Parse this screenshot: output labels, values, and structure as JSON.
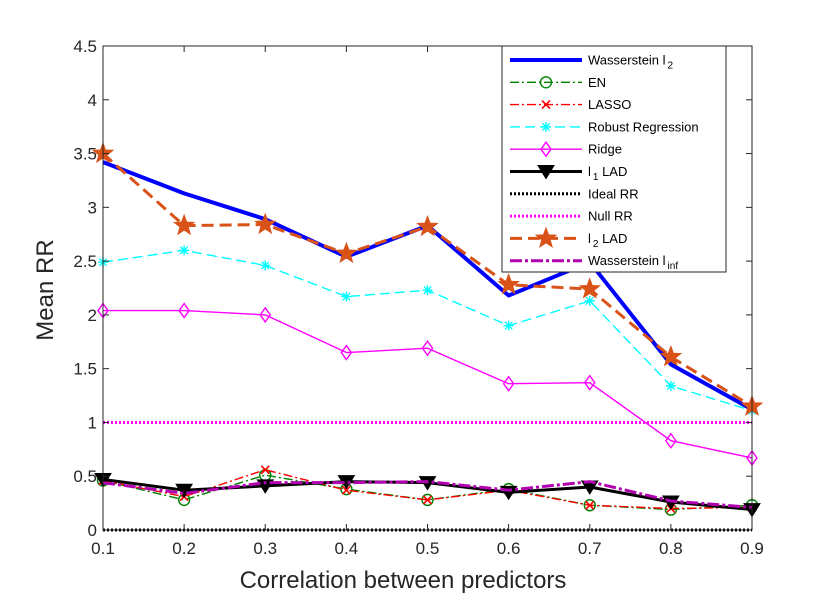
{
  "chart_data": {
    "type": "line",
    "title": "",
    "xlabel": "Correlation between predictors",
    "ylabel": "Mean RR",
    "x": [
      0.1,
      0.2,
      0.3,
      0.4,
      0.5,
      0.6,
      0.7,
      0.8,
      0.9
    ],
    "x_tick_labels": [
      "0.1",
      "0.2",
      "0.3",
      "0.4",
      "0.5",
      "0.6",
      "0.7",
      "0.8",
      "0.9"
    ],
    "xlim": [
      0.1,
      0.9
    ],
    "ylim": [
      0,
      4.5
    ],
    "y_ticks": [
      0,
      0.5,
      1,
      1.5,
      2,
      2.5,
      3,
      3.5,
      4,
      4.5
    ],
    "y_tick_labels": [
      "0",
      "0.5",
      "1",
      "1.5",
      "2",
      "2.5",
      "3",
      "3.5",
      "4",
      "4.5"
    ],
    "grid": false,
    "legend_position": "top-right",
    "series": [
      {
        "name": "Wasserstein l2",
        "legend_main": "Wasserstein l",
        "legend_sub": "2",
        "color": "#0000ff",
        "dash": "",
        "width": 4,
        "marker": "none",
        "values": [
          3.42,
          3.13,
          2.89,
          2.54,
          2.83,
          2.18,
          2.49,
          1.54,
          1.12
        ]
      },
      {
        "name": "EN",
        "legend_main": "EN",
        "legend_sub": "",
        "color": "#008000",
        "dash": "9 3 2 3",
        "width": 1.4,
        "marker": "circle",
        "values": [
          0.46,
          0.28,
          0.51,
          0.38,
          0.28,
          0.38,
          0.23,
          0.19,
          0.23
        ]
      },
      {
        "name": "LASSO",
        "legend_main": "LASSO",
        "legend_sub": "",
        "color": "#ff0000",
        "dash": "9 3 2 3",
        "width": 1.4,
        "marker": "x",
        "values": [
          0.46,
          0.31,
          0.56,
          0.37,
          0.28,
          0.37,
          0.23,
          0.2,
          0.21
        ]
      },
      {
        "name": "Robust Regression",
        "legend_main": "Robust Regression",
        "legend_sub": "",
        "color": "#00ffff",
        "dash": "10 5",
        "width": 1.4,
        "marker": "asterisk",
        "values": [
          2.49,
          2.6,
          2.46,
          2.17,
          2.23,
          1.9,
          2.13,
          1.34,
          1.11
        ]
      },
      {
        "name": "Ridge",
        "legend_main": "Ridge",
        "legend_sub": "",
        "color": "#ff00ff",
        "dash": "",
        "width": 1.4,
        "marker": "diamond",
        "values": [
          2.04,
          2.04,
          2.0,
          1.65,
          1.69,
          1.36,
          1.37,
          0.83,
          0.67
        ]
      },
      {
        "name": "l1 LAD",
        "legend_main": "l",
        "legend_sub": "1",
        "legend_after": " LAD",
        "color": "#000000",
        "dash": "",
        "width": 3,
        "marker": "triangle-down",
        "values": [
          0.47,
          0.37,
          0.41,
          0.45,
          0.44,
          0.35,
          0.4,
          0.26,
          0.19
        ]
      },
      {
        "name": "Ideal RR",
        "legend_main": "Ideal RR",
        "legend_sub": "",
        "color": "#000000",
        "dash": "2 2",
        "width": 3,
        "marker": "none",
        "values": [
          0,
          0,
          0,
          0,
          0,
          0,
          0,
          0,
          0
        ]
      },
      {
        "name": "Null RR",
        "legend_main": "Null RR",
        "legend_sub": "",
        "color": "#ff00ff",
        "dash": "2 2",
        "width": 3,
        "marker": "none",
        "values": [
          1,
          1,
          1,
          1,
          1,
          1,
          1,
          1,
          1
        ]
      },
      {
        "name": "l2 LAD",
        "legend_main": "l",
        "legend_sub": "2",
        "legend_after": " LAD",
        "color": "#d95319",
        "dash": "12 6",
        "width": 3,
        "marker": "star",
        "values": [
          3.5,
          2.83,
          2.84,
          2.57,
          2.82,
          2.28,
          2.24,
          1.61,
          1.15
        ]
      },
      {
        "name": "Wasserstein linf",
        "legend_main": "Wasserstein l",
        "legend_sub": "inf",
        "color": "#b000b0",
        "dash": "12 3 3 3",
        "width": 3,
        "marker": "none",
        "values": [
          0.44,
          0.34,
          0.44,
          0.44,
          0.45,
          0.37,
          0.45,
          0.27,
          0.21
        ]
      }
    ]
  }
}
